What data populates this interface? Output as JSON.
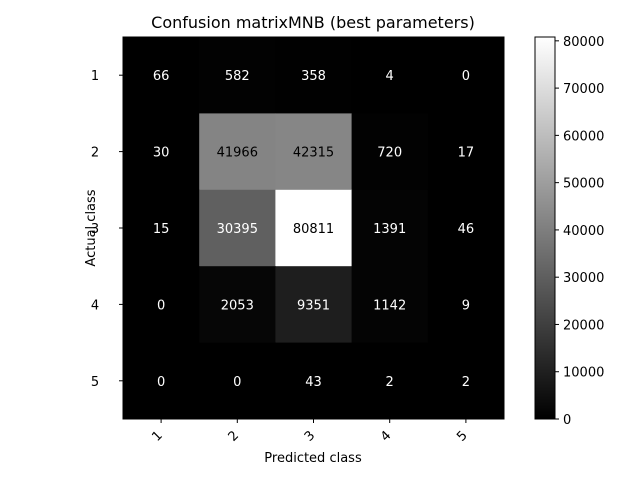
{
  "chart_data": {
    "type": "heatmap",
    "title": "Confusion matrixMNB (best parameters)",
    "xlabel": "Predicted class",
    "ylabel": "Actual class",
    "x_categories": [
      "1",
      "2",
      "3",
      "4",
      "5"
    ],
    "y_categories": [
      "1",
      "2",
      "3",
      "4",
      "5"
    ],
    "values": [
      [
        66,
        582,
        358,
        4,
        0
      ],
      [
        30,
        41966,
        42315,
        720,
        17
      ],
      [
        15,
        30395,
        80811,
        1391,
        46
      ],
      [
        0,
        2053,
        9351,
        1142,
        9
      ],
      [
        0,
        0,
        43,
        2,
        2
      ]
    ],
    "colormap": "gray",
    "colorbar": {
      "range": [
        0,
        80811
      ],
      "ticks": [
        0,
        10000,
        20000,
        30000,
        40000,
        50000,
        60000,
        70000,
        80000
      ]
    },
    "text_color_threshold": 40405
  }
}
